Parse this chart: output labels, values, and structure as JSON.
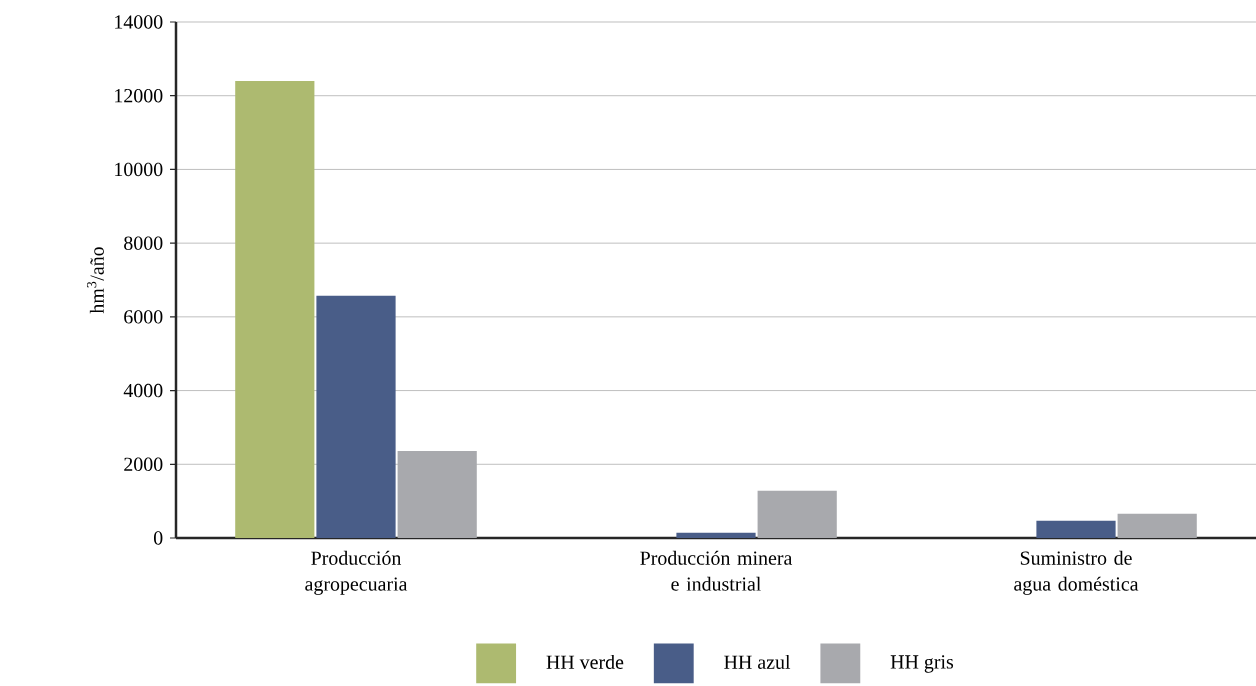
{
  "chart_data": {
    "type": "bar",
    "ylabel": "hm$^{3}$/año",
    "categories": [
      "Producción agropecuaria",
      "Producción minera e industrial",
      "Suministro de agua doméstica"
    ],
    "series": [
      {
        "name": "HH verde",
        "color": "#adba70",
        "values": [
          12400,
          0,
          0
        ]
      },
      {
        "name": "HH azul",
        "color": "#495d88",
        "values": [
          6570,
          140,
          470
        ]
      },
      {
        "name": "HH gris",
        "color": "#a8a9ad",
        "values": [
          2360,
          1280,
          660
        ]
      }
    ],
    "ylim": [
      0,
      14000
    ],
    "yticks": [
      0,
      2000,
      4000,
      6000,
      8000,
      10000,
      12000,
      14000
    ],
    "grid": "y",
    "legend": "bottom"
  }
}
